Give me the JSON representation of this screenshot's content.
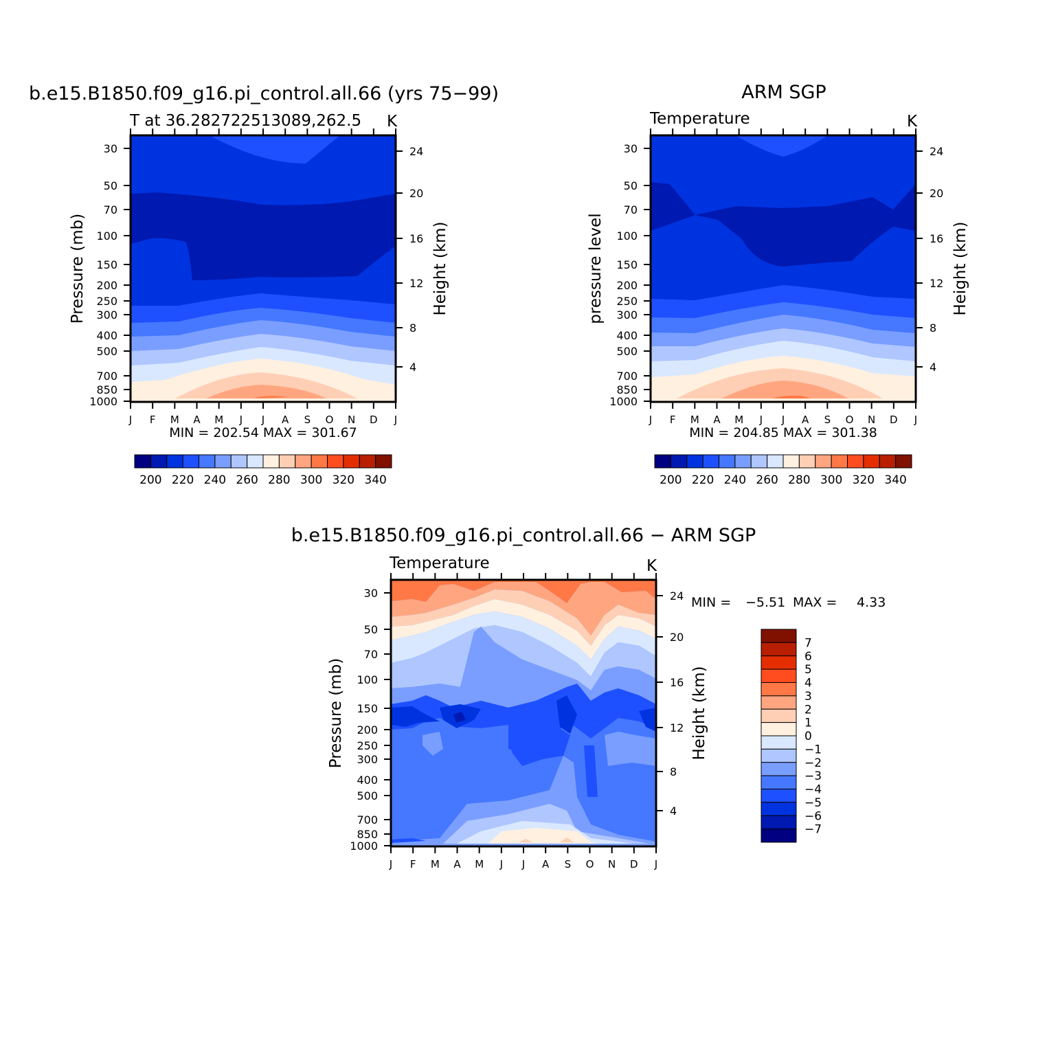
{
  "colors": {
    "abs_levels": [
      "#000080",
      "#0019b0",
      "#0033e0",
      "#1e50ff",
      "#4578ff",
      "#7a9eff",
      "#afc6ff",
      "#d9e8ff",
      "#fff0e0",
      "#ffcfb5",
      "#ffa680",
      "#ff7845",
      "#ff4d1f",
      "#e52e00",
      "#b81f00",
      "#801000"
    ],
    "diff_levels": [
      "#000080",
      "#0019b0",
      "#0033e0",
      "#1e50ff",
      "#4578ff",
      "#7a9eff",
      "#afc6ff",
      "#d9e8ff",
      "#fff0e0",
      "#ffcfb5",
      "#ffa680",
      "#ff7845",
      "#ff4d1f",
      "#e52e00",
      "#b81f00",
      "#801000"
    ]
  },
  "chart_data": [
    {
      "type": "contour",
      "title": "b.e15.B1850.f09_g16.pi_control.all.66 (yrs 75−99)",
      "subtitle": "T at 36.282722513089,262.5",
      "units": "K",
      "ylabel": "Pressure (mb)",
      "y2label": "Height (km)",
      "x_ticks": [
        "J",
        "F",
        "M",
        "A",
        "M",
        "J",
        "J",
        "A",
        "S",
        "O",
        "N",
        "D",
        "J"
      ],
      "y_ticks": [
        "30",
        "50",
        "70",
        "100",
        "150",
        "200",
        "250",
        "300",
        "400",
        "500",
        "700",
        "850",
        "1000"
      ],
      "y2_ticks": [
        "24",
        "20",
        "16",
        "12",
        "8",
        "4"
      ],
      "stats": "MIN = 202.54 MAX = 301.67",
      "colorbar_labels": [
        "200",
        "220",
        "240",
        "260",
        "280",
        "300",
        "320",
        "340"
      ]
    },
    {
      "type": "contour",
      "title": "ARM SGP",
      "subtitle": "Temperature",
      "units": "K",
      "ylabel": "pressure level",
      "y2label": "Height (km)",
      "x_ticks": [
        "J",
        "F",
        "M",
        "A",
        "M",
        "J",
        "J",
        "A",
        "S",
        "O",
        "N",
        "D",
        "J"
      ],
      "y_ticks": [
        "30",
        "50",
        "70",
        "100",
        "150",
        "200",
        "250",
        "300",
        "400",
        "500",
        "700",
        "850",
        "1000"
      ],
      "y2_ticks": [
        "24",
        "20",
        "16",
        "12",
        "8",
        "4"
      ],
      "stats": "MIN = 204.85 MAX = 301.38",
      "colorbar_labels": [
        "200",
        "220",
        "240",
        "260",
        "280",
        "300",
        "320",
        "340"
      ]
    },
    {
      "type": "contour",
      "title": "b.e15.B1850.f09_g16.pi_control.all.66 − ARM SGP",
      "subtitle": "Temperature",
      "units": "K",
      "ylabel": "Pressure (mb)",
      "y2label": "Height (km)",
      "x_ticks": [
        "J",
        "F",
        "M",
        "A",
        "M",
        "J",
        "J",
        "A",
        "S",
        "O",
        "N",
        "D",
        "J"
      ],
      "y_ticks": [
        "30",
        "50",
        "70",
        "100",
        "150",
        "200",
        "250",
        "300",
        "400",
        "500",
        "700",
        "850",
        "1000"
      ],
      "y2_ticks": [
        "24",
        "20",
        "16",
        "12",
        "8",
        "4"
      ],
      "stats_min_label": "MIN =",
      "stats_min": "−5.51",
      "stats_max_label": "MAX =",
      "stats_max": "4.33",
      "colorbar_labels": [
        "7",
        "6",
        "5",
        "4",
        "3",
        "2",
        "1",
        "0",
        "−1",
        "−2",
        "−3",
        "−4",
        "−5",
        "−6",
        "−7"
      ]
    }
  ]
}
